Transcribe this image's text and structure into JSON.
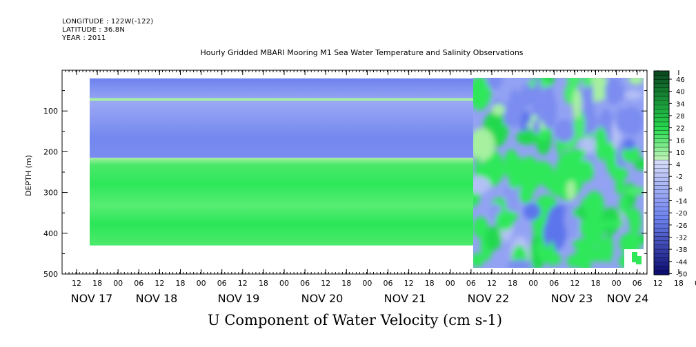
{
  "header": {
    "longitude": "LONGITUDE : 122W(-122)",
    "latitude": "LATITUDE : 36.8N",
    "year": "YEAR : 2011"
  },
  "chart_data": {
    "type": "heatmap",
    "title": "Hourly Gridded MBARI Mooring M1 Sea Water Temperature and Salinity Observations",
    "xlabel": "U Component of Water Velocity (cm s-1)",
    "ylabel": "DEPTH (m)",
    "y_axis": {
      "min": 500,
      "max": 0,
      "reversed": true,
      "ticks": [
        100,
        200,
        300,
        400,
        500
      ]
    },
    "x_axis": {
      "hour_ticks": [
        "12",
        "18",
        "00",
        "06",
        "12",
        "18",
        "00",
        "06",
        "12",
        "18",
        "00",
        "06",
        "12",
        "18",
        "00",
        "06",
        "12",
        "18",
        "00",
        "06",
        "12",
        "18",
        "00",
        "06",
        "12",
        "18",
        "00",
        "06",
        "12",
        "18",
        "00",
        "06"
      ],
      "day_labels": [
        "NOV 17",
        "NOV 18",
        "NOV 19",
        "NOV 20",
        "NOV 21",
        "NOV 22",
        "NOV 23",
        "NOV 24"
      ]
    },
    "colorbar": {
      "labels": [
        "46",
        "40",
        "34",
        "28",
        "22",
        "16",
        "10",
        "4",
        "-2",
        "-8",
        "-14",
        "-20",
        "-26",
        "-32",
        "-38",
        "-44",
        "-50"
      ],
      "range": [
        -50,
        46
      ]
    },
    "regions": [
      {
        "period": "NOV 17 12 - NOV 22 06",
        "depth": [
          20,
          70
        ],
        "u": -13
      },
      {
        "period": "NOV 17 12 - NOV 22 06",
        "depth": [
          70,
          73
        ],
        "u": 6
      },
      {
        "period": "NOV 17 12 - NOV 22 06",
        "depth": [
          73,
          215
        ],
        "u": -14
      },
      {
        "period": "NOV 17 12 - NOV 22 06",
        "depth": [
          215,
          430
        ],
        "u": 14
      },
      {
        "period": "NOV 22 06 - NOV 24 06",
        "depth": [
          20,
          480
        ],
        "u": "mixed -20 to 30"
      }
    ],
    "colors": {
      "blue": "#7b8cf0",
      "green": "#2ee85a",
      "light_green": "#a6f0a0"
    }
  }
}
